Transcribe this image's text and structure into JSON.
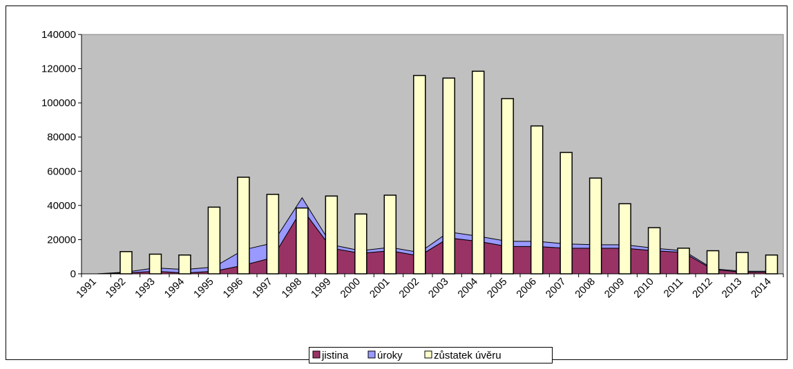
{
  "chart_data": {
    "type": "bar-area",
    "categories": [
      "1991",
      "1992",
      "1993",
      "1994",
      "1995",
      "1996",
      "1997",
      "1998",
      "1999",
      "2000",
      "2001",
      "2002",
      "2003",
      "2004",
      "2005",
      "2006",
      "2007",
      "2008",
      "2009",
      "2010",
      "2011",
      "2012",
      "2013",
      "2014"
    ],
    "series": [
      {
        "name": "jistina",
        "color": "#993366",
        "kind": "area",
        "values": [
          0,
          500,
          1500,
          500,
          1500,
          5000,
          9500,
          38000,
          15000,
          12000,
          13500,
          10500,
          21000,
          19000,
          16000,
          16000,
          15000,
          15000,
          15000,
          13500,
          12500,
          2500,
          1000,
          1000
        ]
      },
      {
        "name": "úroky",
        "color": "#9999ff",
        "kind": "area",
        "values": [
          0,
          500,
          2000,
          2000,
          2500,
          9000,
          8500,
          6500,
          2000,
          1500,
          2000,
          2000,
          3500,
          3000,
          3000,
          3000,
          2500,
          2000,
          2000,
          1500,
          1000,
          500,
          500,
          500
        ]
      },
      {
        "name": "zůstatek úvěru",
        "color": "#ffffcc",
        "kind": "bar",
        "values": [
          0,
          13000,
          11500,
          11000,
          39000,
          56500,
          46500,
          38500,
          45500,
          35000,
          46000,
          116000,
          114500,
          118500,
          102500,
          86500,
          71000,
          56000,
          41000,
          27000,
          15000,
          13500,
          12500,
          11000
        ]
      }
    ],
    "ylim": [
      0,
      140000
    ],
    "yticks": [
      0,
      20000,
      40000,
      60000,
      80000,
      100000,
      120000,
      140000
    ],
    "legend": "bottom"
  }
}
